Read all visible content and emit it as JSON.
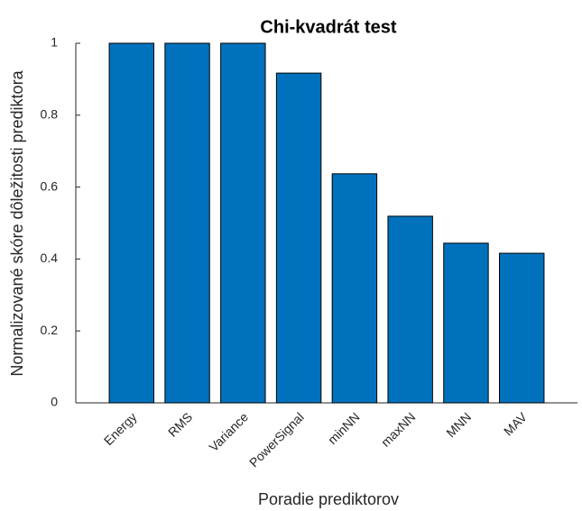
{
  "chart_data": {
    "type": "bar",
    "title": "Chi-kvadrát test",
    "x_label": "Poradie prediktorov",
    "y_label": "Normalizované skóre dôležitosti prediktora",
    "categories": [
      "Energy",
      "RMS",
      "Variance",
      "PowerSignal",
      "minNN",
      "maxNN",
      "MNN",
      "MAV"
    ],
    "values": [
      1,
      1,
      1,
      0.917,
      0.637,
      0.519,
      0.444,
      0.416
    ],
    "color": "#0072bd",
    "ylim": [
      0,
      1
    ],
    "yticks": [
      0,
      0.2,
      0.4,
      0.6,
      0.8,
      1
    ],
    "grid": false
  }
}
